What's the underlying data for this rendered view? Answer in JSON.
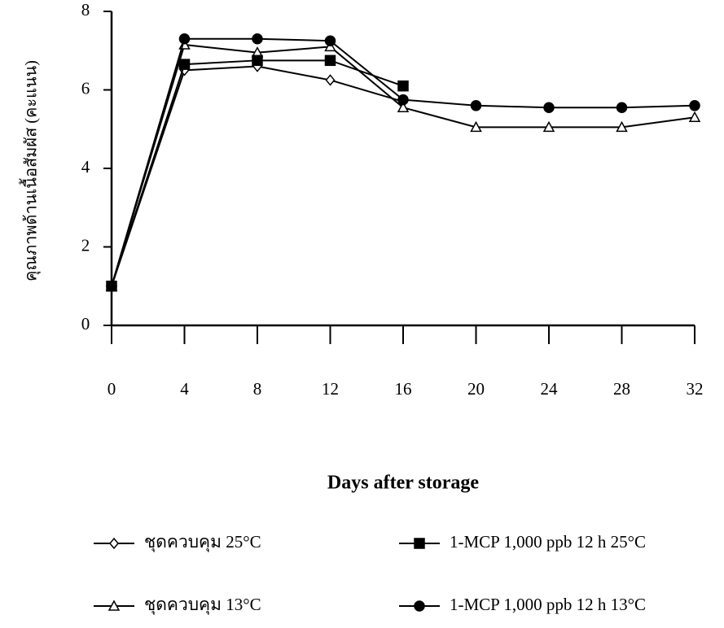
{
  "chart_data": {
    "type": "line",
    "xlabel": "Days after storage",
    "ylabel": "คุณภาพด้านเนื้อสัมผัส (คะแนน)",
    "x": [
      0,
      4,
      8,
      12,
      16,
      20,
      24,
      28,
      32
    ],
    "xlim": [
      0,
      32
    ],
    "xticks": [
      0,
      4,
      8,
      12,
      16,
      20,
      24,
      28,
      32
    ],
    "ylim": [
      0,
      8
    ],
    "yticks": [
      0,
      2,
      4,
      6,
      8
    ],
    "series": [
      {
        "name": "ชุดควบคุม 25°C",
        "color": "#000000",
        "marker": "diamond",
        "marker_fill": "#ffffff",
        "values": [
          1,
          6.5,
          6.6,
          6.25,
          5.7,
          null,
          null,
          null,
          null
        ]
      },
      {
        "name": "ชุดควบคุม 13°C",
        "color": "#000000",
        "marker": "triangle",
        "marker_fill": "#ffffff",
        "values": [
          1,
          7.15,
          6.95,
          7.1,
          5.55,
          5.05,
          5.05,
          5.05,
          5.3
        ]
      },
      {
        "name": "1-MCP 1,000 ppb 12 h 25°C",
        "color": "#000000",
        "marker": "square",
        "marker_fill": "#000000",
        "values": [
          1,
          6.65,
          6.75,
          6.75,
          6.1,
          null,
          null,
          null,
          null
        ]
      },
      {
        "name": "1-MCP 1,000 ppb 12 h 13°C",
        "color": "#000000",
        "marker": "circle",
        "marker_fill": "#000000",
        "values": [
          1,
          7.3,
          7.3,
          7.25,
          5.75,
          5.6,
          5.55,
          5.55,
          5.6
        ]
      }
    ]
  }
}
